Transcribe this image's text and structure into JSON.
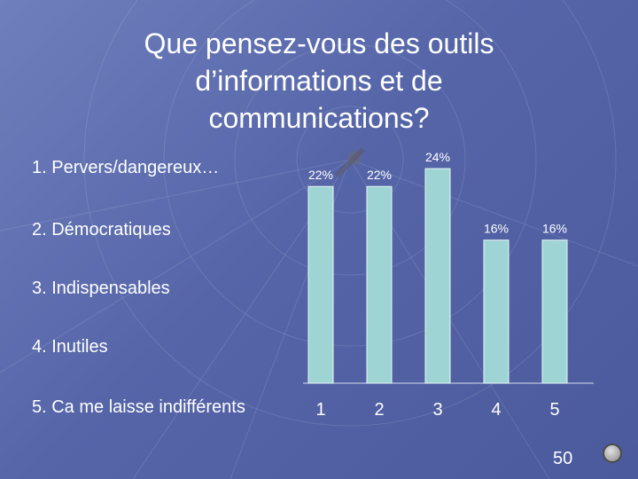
{
  "slide": {
    "title_lines": [
      "Que pensez-vous des outils",
      "d’informations et de",
      "communications?"
    ],
    "options": [
      "1. Pervers/dangereux…",
      "2. Démocratiques",
      "3. Indispensables",
      "4. Inutiles",
      "5. Ca me laisse indifférents"
    ],
    "page_number": "50"
  },
  "colors": {
    "bar_fill": "#9fd4d4",
    "bar_stroke": "#e8f6f6",
    "label": "#ffffff"
  },
  "chart_data": {
    "type": "bar",
    "title": "",
    "categories": [
      "1",
      "2",
      "3",
      "4",
      "5"
    ],
    "values": [
      22,
      22,
      24,
      16,
      16
    ],
    "data_labels": [
      "22%",
      "22%",
      "24%",
      "16%",
      "16%"
    ],
    "ylim": [
      0,
      25
    ],
    "xlabel": "",
    "ylabel": ""
  }
}
